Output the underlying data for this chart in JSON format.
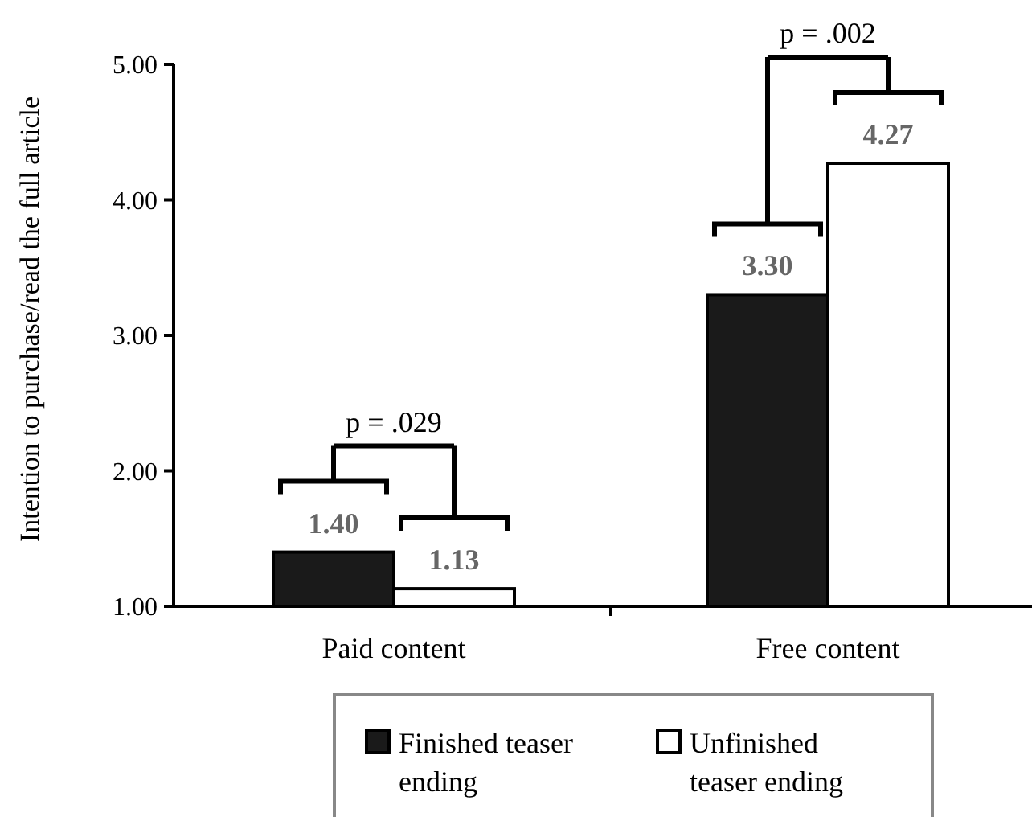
{
  "chart_data": {
    "type": "bar",
    "ylabel": "Intention to purchase/read the full article",
    "categories": [
      "Paid content",
      "Free content"
    ],
    "ylim": [
      1,
      5
    ],
    "yticks": [
      {
        "value": 1,
        "label": "1.00"
      },
      {
        "value": 2,
        "label": "2.00"
      },
      {
        "value": 3,
        "label": "3.00"
      },
      {
        "value": 4,
        "label": "4.00"
      },
      {
        "value": 5,
        "label": "5.00"
      }
    ],
    "series": [
      {
        "name": "Finished teaser ending",
        "color": "#1a1a1a",
        "values": [
          1.4,
          3.3
        ],
        "value_labels": [
          "1.40",
          "3.30"
        ]
      },
      {
        "name": "Unfinished teaser ending",
        "color": "#ffffff",
        "values": [
          1.13,
          4.27
        ],
        "value_labels": [
          "1.13",
          "4.27"
        ]
      }
    ],
    "annotations": [
      "p = .029",
      "p = .002"
    ],
    "legend": "bottom",
    "grid": false
  }
}
